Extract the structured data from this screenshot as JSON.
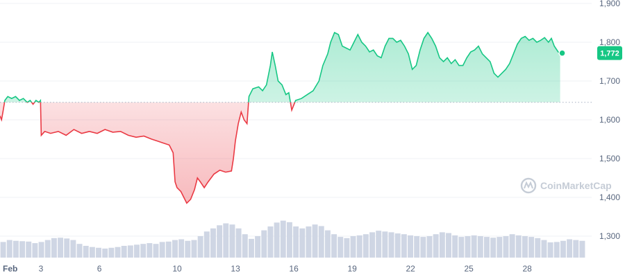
{
  "chart_data": {
    "type": "line",
    "title": "",
    "xlabel": "",
    "ylabel": "",
    "ylim": [
      1230,
      1900
    ],
    "grid": "horizontal",
    "baseline_value": 1645,
    "current_price_label": "1,772",
    "current_price": 1772,
    "watermark": "CoinMarketCap",
    "colors": {
      "up": "#16c784",
      "down": "#ea3943",
      "volume": "#cfd6e4",
      "grid": "#eff2f5",
      "badge": "#16c784"
    },
    "y_ticks": [
      {
        "label": "1,900",
        "value": 1900
      },
      {
        "label": "1,800",
        "value": 1800
      },
      {
        "label": "1,700",
        "value": 1700
      },
      {
        "label": "1,600",
        "value": 1600
      },
      {
        "label": "1,500",
        "value": 1500
      },
      {
        "label": "1,400",
        "value": 1400
      },
      {
        "label": "1,300",
        "value": 1300
      }
    ],
    "x_ticks": [
      {
        "label": "Feb",
        "t": 0
      },
      {
        "label": "3",
        "t": 2
      },
      {
        "label": "6",
        "t": 5
      },
      {
        "label": "10",
        "t": 9
      },
      {
        "label": "13",
        "t": 12
      },
      {
        "label": "16",
        "t": 15
      },
      {
        "label": "19",
        "t": 18
      },
      {
        "label": "22",
        "t": 21
      },
      {
        "label": "25",
        "t": 24
      },
      {
        "label": "28",
        "t": 27
      }
    ],
    "x_range": [
      0,
      30.1
    ],
    "series": [
      {
        "points": [
          [
            0.0,
            1610
          ],
          [
            0.08,
            1600
          ],
          [
            0.15,
            1620
          ],
          [
            0.25,
            1650
          ],
          [
            0.4,
            1660
          ],
          [
            0.6,
            1655
          ],
          [
            0.8,
            1660
          ],
          [
            1.0,
            1650
          ],
          [
            1.2,
            1655
          ],
          [
            1.4,
            1645
          ],
          [
            1.55,
            1650
          ],
          [
            1.7,
            1640
          ],
          [
            1.85,
            1650
          ],
          [
            2.0,
            1645
          ],
          [
            2.08,
            1650
          ],
          [
            2.12,
            1560
          ],
          [
            2.3,
            1570
          ],
          [
            2.6,
            1565
          ],
          [
            3.0,
            1570
          ],
          [
            3.4,
            1560
          ],
          [
            3.8,
            1575
          ],
          [
            4.2,
            1565
          ],
          [
            4.6,
            1570
          ],
          [
            5.0,
            1565
          ],
          [
            5.4,
            1575
          ],
          [
            5.8,
            1568
          ],
          [
            6.2,
            1570
          ],
          [
            6.6,
            1560
          ],
          [
            7.0,
            1555
          ],
          [
            7.4,
            1558
          ],
          [
            7.8,
            1550
          ],
          [
            8.1,
            1545
          ],
          [
            8.4,
            1540
          ],
          [
            8.7,
            1535
          ],
          [
            8.9,
            1515
          ],
          [
            9.0,
            1440
          ],
          [
            9.1,
            1425
          ],
          [
            9.3,
            1415
          ],
          [
            9.45,
            1400
          ],
          [
            9.6,
            1385
          ],
          [
            9.8,
            1395
          ],
          [
            10.0,
            1420
          ],
          [
            10.15,
            1450
          ],
          [
            10.3,
            1440
          ],
          [
            10.5,
            1425
          ],
          [
            10.7,
            1440
          ],
          [
            11.0,
            1460
          ],
          [
            11.3,
            1470
          ],
          [
            11.6,
            1465
          ],
          [
            11.9,
            1468
          ],
          [
            12.0,
            1500
          ],
          [
            12.1,
            1545
          ],
          [
            12.25,
            1590
          ],
          [
            12.4,
            1620
          ],
          [
            12.55,
            1600
          ],
          [
            12.7,
            1590
          ],
          [
            12.8,
            1660
          ],
          [
            13.0,
            1680
          ],
          [
            13.3,
            1685
          ],
          [
            13.5,
            1675
          ],
          [
            13.7,
            1690
          ],
          [
            13.9,
            1740
          ],
          [
            14.0,
            1775
          ],
          [
            14.15,
            1740
          ],
          [
            14.3,
            1700
          ],
          [
            14.5,
            1690
          ],
          [
            14.7,
            1665
          ],
          [
            14.85,
            1670
          ],
          [
            15.0,
            1625
          ],
          [
            15.2,
            1650
          ],
          [
            15.5,
            1655
          ],
          [
            15.8,
            1665
          ],
          [
            16.1,
            1675
          ],
          [
            16.4,
            1700
          ],
          [
            16.6,
            1740
          ],
          [
            16.85,
            1770
          ],
          [
            17.0,
            1800
          ],
          [
            17.2,
            1825
          ],
          [
            17.4,
            1820
          ],
          [
            17.6,
            1790
          ],
          [
            17.8,
            1785
          ],
          [
            18.0,
            1780
          ],
          [
            18.2,
            1800
          ],
          [
            18.4,
            1820
          ],
          [
            18.6,
            1800
          ],
          [
            18.8,
            1790
          ],
          [
            19.0,
            1775
          ],
          [
            19.2,
            1780
          ],
          [
            19.4,
            1765
          ],
          [
            19.6,
            1760
          ],
          [
            19.8,
            1790
          ],
          [
            20.0,
            1810
          ],
          [
            20.2,
            1810
          ],
          [
            20.4,
            1800
          ],
          [
            20.6,
            1805
          ],
          [
            20.8,
            1790
          ],
          [
            21.0,
            1770
          ],
          [
            21.2,
            1730
          ],
          [
            21.4,
            1740
          ],
          [
            21.6,
            1780
          ],
          [
            21.8,
            1810
          ],
          [
            22.0,
            1825
          ],
          [
            22.2,
            1810
          ],
          [
            22.4,
            1790
          ],
          [
            22.6,
            1760
          ],
          [
            22.8,
            1750
          ],
          [
            23.0,
            1760
          ],
          [
            23.2,
            1745
          ],
          [
            23.4,
            1755
          ],
          [
            23.6,
            1740
          ],
          [
            23.8,
            1740
          ],
          [
            24.0,
            1760
          ],
          [
            24.2,
            1775
          ],
          [
            24.4,
            1780
          ],
          [
            24.6,
            1790
          ],
          [
            24.8,
            1770
          ],
          [
            25.0,
            1760
          ],
          [
            25.2,
            1750
          ],
          [
            25.4,
            1720
          ],
          [
            25.6,
            1710
          ],
          [
            25.8,
            1720
          ],
          [
            26.0,
            1730
          ],
          [
            26.2,
            1745
          ],
          [
            26.4,
            1770
          ],
          [
            26.6,
            1795
          ],
          [
            26.8,
            1810
          ],
          [
            27.0,
            1815
          ],
          [
            27.2,
            1805
          ],
          [
            27.4,
            1810
          ],
          [
            27.6,
            1800
          ],
          [
            27.8,
            1805
          ],
          [
            28.0,
            1812
          ],
          [
            28.2,
            1800
          ],
          [
            28.35,
            1810
          ],
          [
            28.5,
            1790
          ],
          [
            28.7,
            1775
          ],
          [
            28.8,
            1772
          ]
        ]
      }
    ],
    "volume": [
      1285,
      1290,
      1288,
      1287,
      1286,
      1282,
      1285,
      1290,
      1295,
      1296,
      1294,
      1290,
      1280,
      1275,
      1272,
      1270,
      1268,
      1270,
      1272,
      1275,
      1276,
      1278,
      1280,
      1282,
      1280,
      1285,
      1286,
      1290,
      1292,
      1288,
      1290,
      1300,
      1312,
      1320,
      1328,
      1333,
      1330,
      1320,
      1305,
      1293,
      1300,
      1315,
      1325,
      1335,
      1340,
      1336,
      1325,
      1320,
      1325,
      1330,
      1326,
      1315,
      1305,
      1298,
      1295,
      1300,
      1302,
      1305,
      1310,
      1314,
      1312,
      1310,
      1307,
      1305,
      1302,
      1300,
      1298,
      1300,
      1305,
      1310,
      1308,
      1302,
      1298,
      1300,
      1302,
      1300,
      1298,
      1296,
      1298,
      1300,
      1305,
      1302,
      1300,
      1298,
      1295,
      1290,
      1284,
      1285,
      1288,
      1292,
      1290,
      1288
    ]
  }
}
